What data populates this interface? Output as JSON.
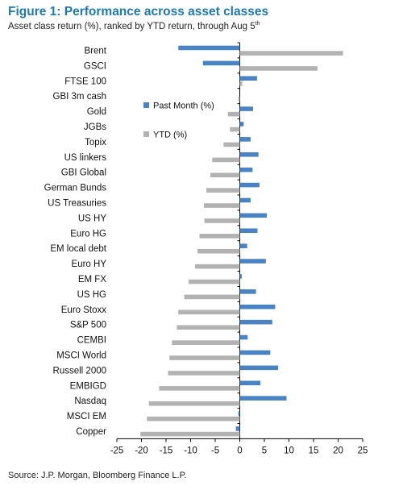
{
  "chart_data": {
    "type": "bar",
    "orientation": "horizontal",
    "title": "Figure 1: Performance across asset classes",
    "subtitle_main": "Asset class return (%), ranked by YTD return, through Aug 5",
    "subtitle_sup": "th",
    "source": "Source: J.P. Morgan, Bloomberg Finance L.P.",
    "categories": [
      "Brent",
      "GSCI",
      "FTSE 100",
      "GBI 3m cash",
      "Gold",
      "JGBs",
      "Topix",
      "US linkers",
      "GBI Global",
      "German Bunds",
      "US Treasuries",
      "US HY",
      "Euro HG",
      "EM local debt",
      "Euro HY",
      "EM FX",
      "US HG",
      "Euro Stoxx",
      "S&P 500",
      "CEMBI",
      "MSCI World",
      "Russell 2000",
      "EMBIGD",
      "Nasdaq",
      "MSCI EM",
      "Copper"
    ],
    "series": [
      {
        "name": "Past Month (%)",
        "color": "#4a83c4",
        "values": [
          -12.5,
          -7.5,
          3.5,
          0.0,
          2.7,
          0.8,
          2.2,
          3.8,
          2.6,
          4.0,
          2.2,
          5.5,
          3.6,
          1.5,
          5.3,
          0.4,
          3.3,
          7.2,
          6.6,
          1.6,
          6.2,
          7.8,
          4.2,
          9.5,
          -0.3,
          -0.8
        ]
      },
      {
        "name": "YTD (%)",
        "color": "#b2b2b2",
        "values": [
          21.0,
          15.8,
          0.5,
          -0.3,
          -2.4,
          -2.0,
          -3.3,
          -5.6,
          -6.0,
          -6.8,
          -7.3,
          -7.2,
          -8.2,
          -8.6,
          -9.1,
          -10.4,
          -11.3,
          -12.5,
          -12.8,
          -13.8,
          -14.3,
          -14.6,
          -16.4,
          -18.5,
          -18.9,
          -20.2
        ]
      }
    ],
    "xlim": [
      -25,
      25
    ],
    "xticks": [
      "-25",
      "-20",
      "-15",
      "-10",
      "-5",
      "0",
      "5",
      "10",
      "15",
      "20",
      "25"
    ],
    "grid": false,
    "legend_position": "center-left"
  }
}
